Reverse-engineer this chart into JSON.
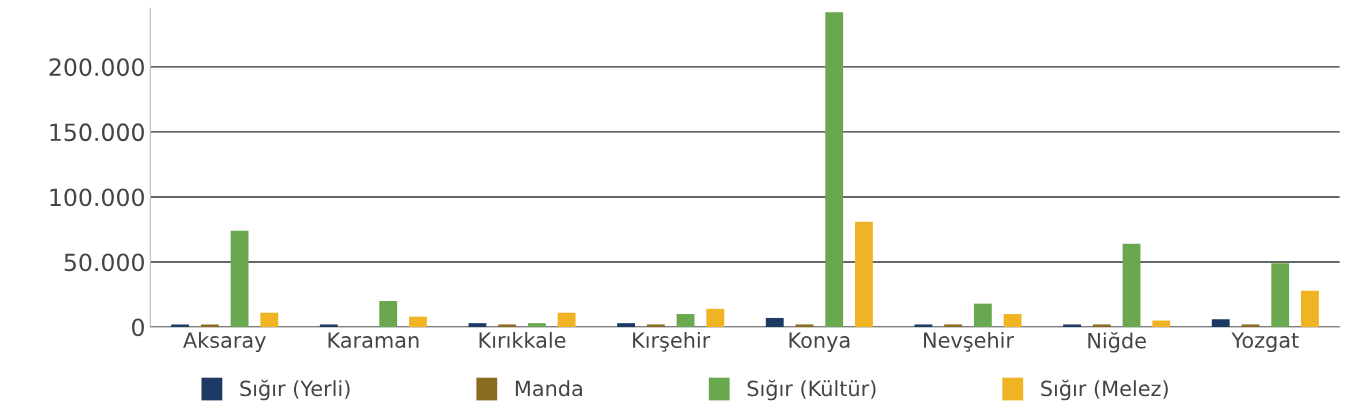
{
  "chart_data": {
    "type": "bar",
    "categories": [
      "Aksaray",
      "Karaman",
      "Kırıkkale",
      "Kırşehir",
      "Konya",
      "Nevşehir",
      "Niğde",
      "Yozgat"
    ],
    "series": [
      {
        "name": "Sığır (Yerli)",
        "color": "#1c3a63",
        "values": [
          2000,
          2000,
          3000,
          3000,
          7000,
          2000,
          2000,
          6000
        ]
      },
      {
        "name": "Manda",
        "color": "#8a6a1f",
        "values": [
          2000,
          0,
          2000,
          2000,
          2000,
          2000,
          2000,
          2000
        ]
      },
      {
        "name": "Sığır (Kültür)",
        "color": "#6aa84f",
        "values": [
          74000,
          20000,
          3000,
          10000,
          242000,
          18000,
          64000,
          49000
        ]
      },
      {
        "name": "Sığır (Melez)",
        "color": "#f0b323",
        "values": [
          11000,
          8000,
          11000,
          14000,
          81000,
          10000,
          5000,
          28000
        ]
      }
    ],
    "ylim": [
      0,
      245000
    ],
    "yticks": [
      0,
      {
        "value": 50000,
        "label": "50.000"
      },
      {
        "value": 100000,
        "label": "100.000"
      },
      {
        "value": 150000,
        "label": "150.000"
      },
      {
        "value": 200000,
        "label": "200.000"
      }
    ],
    "grid": "y",
    "legend": "bottom"
  }
}
